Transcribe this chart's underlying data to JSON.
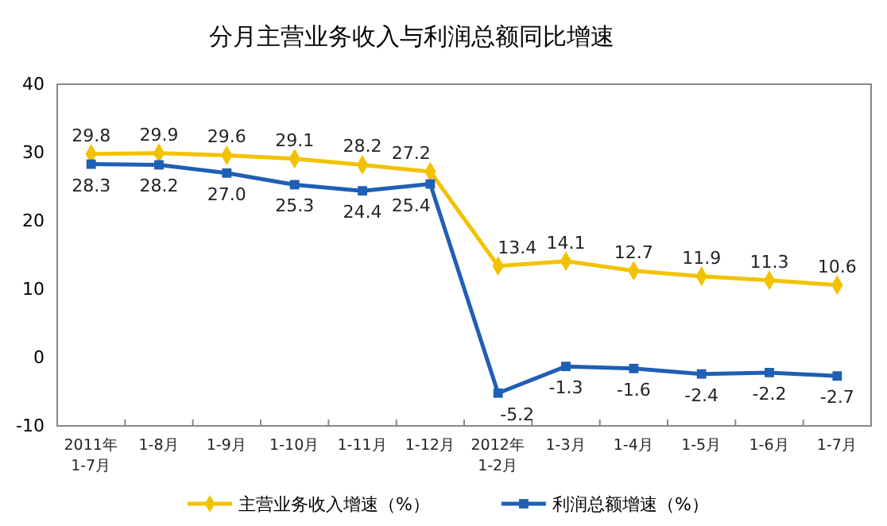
{
  "chart_data": {
    "type": "line",
    "title": "分月主营业务收入与利润总额同比增速",
    "categories": [
      "2011年\n1-7月",
      "1-8月",
      "1-9月",
      "1-10月",
      "1-11月",
      "1-12月",
      "2012年\n1-2月",
      "1-3月",
      "1-4月",
      "1-5月",
      "1-6月",
      "1-7月"
    ],
    "series": [
      {
        "name": "主营业务收入增速（%）",
        "color": "#f2c200",
        "marker": "diamond",
        "values": [
          29.8,
          29.9,
          29.6,
          29.1,
          28.2,
          27.2,
          13.4,
          14.1,
          12.7,
          11.9,
          11.3,
          10.6
        ],
        "value_labels": [
          "29.8",
          "29.9",
          "29.6",
          "29.1",
          "28.2",
          "27.2",
          "13.4",
          "14.1",
          "12.7",
          "11.9",
          "11.3",
          "10.6"
        ]
      },
      {
        "name": "利润总额增速（%）",
        "color": "#1f5fb4",
        "marker": "square",
        "values": [
          28.3,
          28.2,
          27.0,
          25.3,
          24.4,
          25.4,
          -5.2,
          -1.3,
          -1.6,
          -2.4,
          -2.2,
          -2.7
        ],
        "value_labels": [
          "28.3",
          "28.2",
          "27.0",
          "25.3",
          "24.4",
          "25.4",
          "-5.2",
          "-1.3",
          "-1.6",
          "-2.4",
          "-2.2",
          "-2.7"
        ]
      }
    ],
    "ylim": [
      -10,
      40
    ],
    "yticks": [
      -10,
      0,
      10,
      20,
      30,
      40
    ],
    "grid": false,
    "legend": "bottom"
  }
}
